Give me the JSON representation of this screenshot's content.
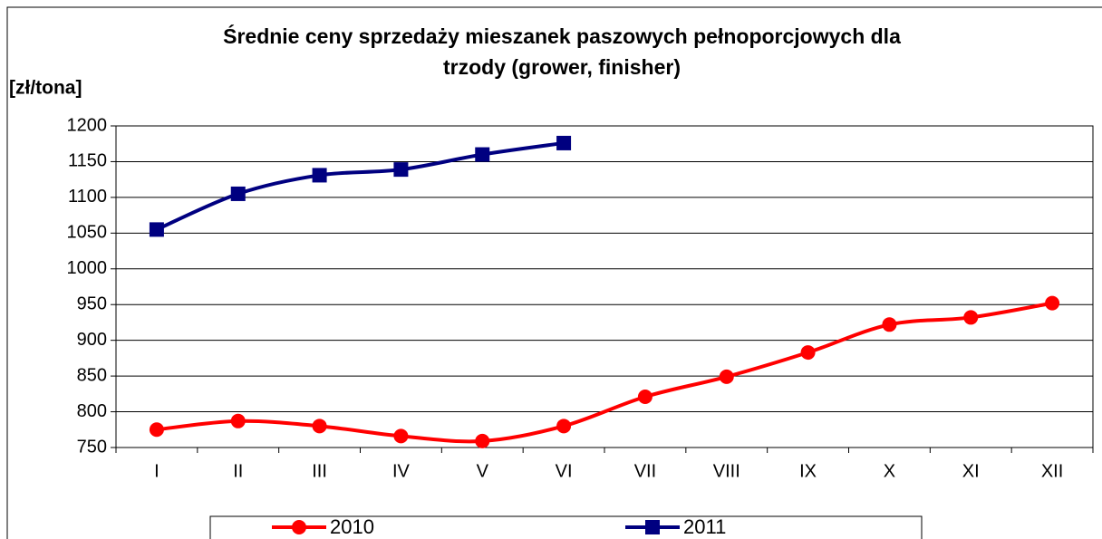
{
  "chart_data": {
    "type": "line",
    "title": [
      "Średnie ceny sprzedaży mieszanek paszowych pełnoporcjowych dla",
      "trzody (grower, finisher)"
    ],
    "y_label": "[zł/tona]",
    "categories": [
      "I",
      "II",
      "III",
      "IV",
      "V",
      "VI",
      "VII",
      "VIII",
      "IX",
      "X",
      "XI",
      "XII"
    ],
    "series": [
      {
        "name": "2010",
        "color": "#ff0000",
        "marker": "circle",
        "values": [
          775,
          787,
          780,
          766,
          759,
          780,
          821,
          849,
          883,
          922,
          932,
          952
        ]
      },
      {
        "name": "2011",
        "color": "#000080",
        "marker": "square",
        "values": [
          1055,
          1105,
          1131,
          1139,
          1160,
          1176,
          null,
          null,
          null,
          null,
          null,
          null
        ]
      }
    ],
    "ylim": [
      750,
      1200
    ],
    "yticks": [
      750,
      800,
      850,
      900,
      950,
      1000,
      1050,
      1100,
      1150,
      1200
    ],
    "grid": true,
    "legend": "bottom"
  }
}
